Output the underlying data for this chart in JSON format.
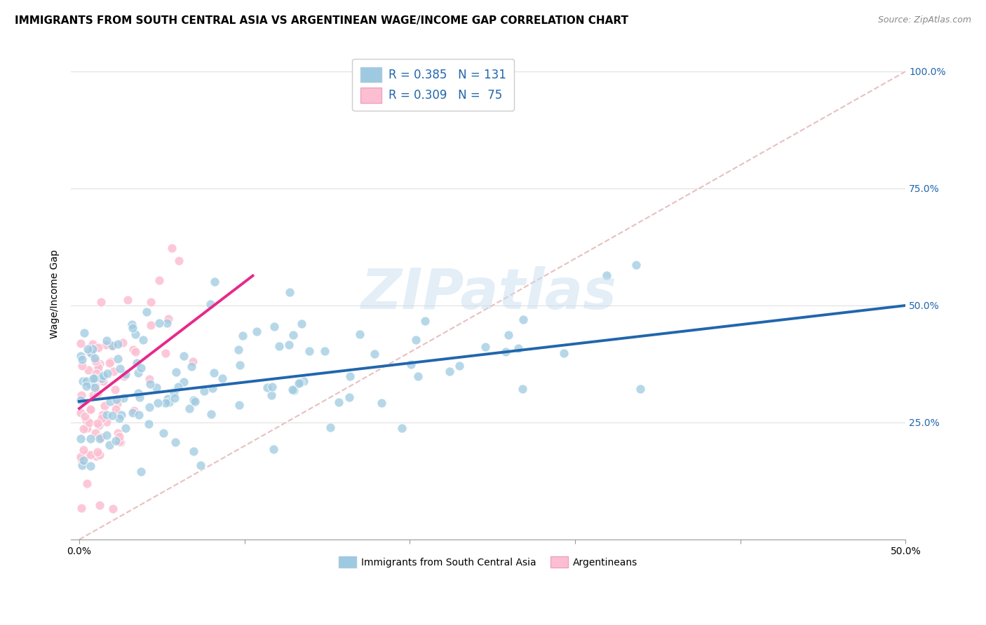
{
  "title": "IMMIGRANTS FROM SOUTH CENTRAL ASIA VS ARGENTINEAN WAGE/INCOME GAP CORRELATION CHART",
  "source": "Source: ZipAtlas.com",
  "ylabel": "Wage/Income Gap",
  "xlim": [
    0.0,
    0.5
  ],
  "ylim": [
    0.0,
    1.0
  ],
  "blue_color": "#9ecae1",
  "pink_color": "#fcbfd2",
  "blue_line_color": "#2166ac",
  "pink_line_color": "#e7298a",
  "diagonal_color": "#cccccc",
  "R_blue": 0.385,
  "N_blue": 131,
  "R_pink": 0.309,
  "N_pink": 75,
  "legend_label_blue": "Immigrants from South Central Asia",
  "legend_label_pink": "Argentineans",
  "watermark": "ZIPatlas",
  "title_fontsize": 12,
  "axis_label_fontsize": 10,
  "tick_fontsize": 10,
  "legend_text_color": "#2166ac"
}
